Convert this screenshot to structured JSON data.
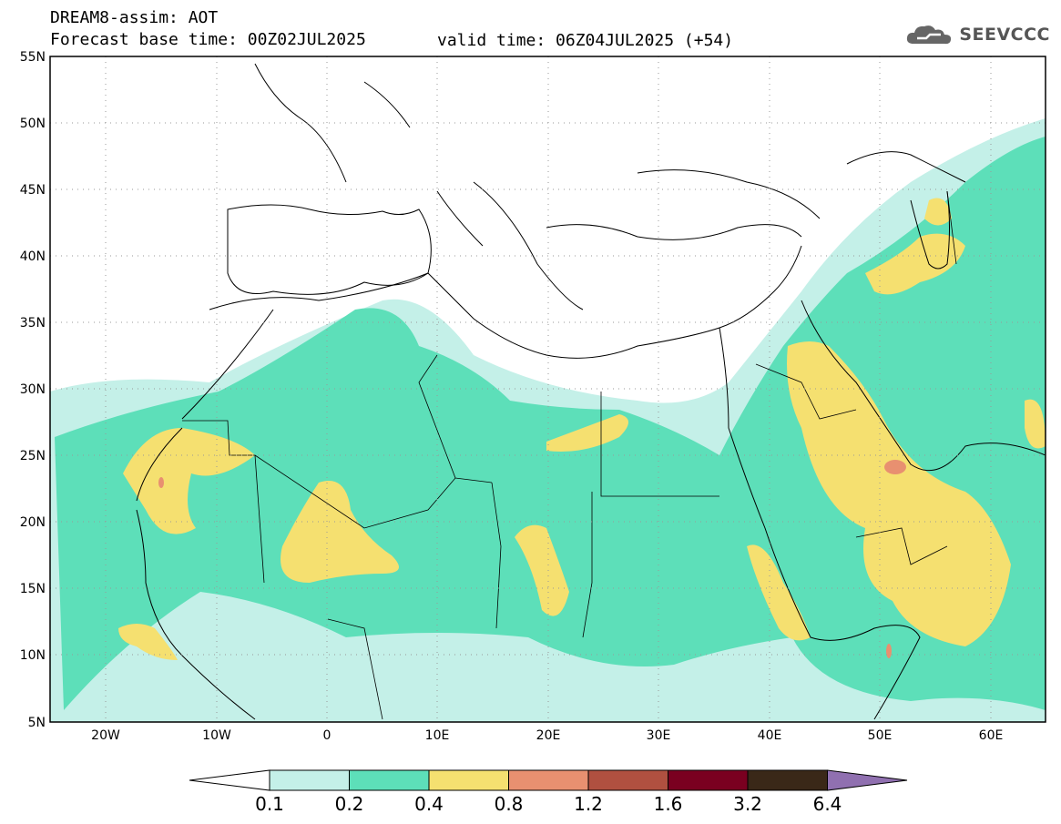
{
  "header": {
    "title": "DREAM8-assim: AOT",
    "base_time": "Forecast base time: 00Z02JUL2025",
    "valid_time": "valid time: 06Z04JUL2025 (+54)"
  },
  "logo": {
    "text": "SEEVCCC",
    "icon": "cloud-icon"
  },
  "axes": {
    "lat_labels": [
      "55N",
      "50N",
      "45N",
      "40N",
      "35N",
      "30N",
      "25N",
      "20N",
      "15N",
      "10N",
      "5N"
    ],
    "lon_labels": [
      "20W",
      "10W",
      "0",
      "10E",
      "20E",
      "30E",
      "40E",
      "50E",
      "60E"
    ]
  },
  "colorbar": {
    "thresholds": [
      "0.1",
      "0.2",
      "0.4",
      "0.8",
      "1.2",
      "1.6",
      "3.2",
      "6.4"
    ],
    "colors": [
      "#ffffff",
      "#c4f0e8",
      "#5ddfb9",
      "#f5e070",
      "#e89070",
      "#b05040",
      "#7a0020",
      "#3a2818",
      "#9070b0"
    ]
  }
}
